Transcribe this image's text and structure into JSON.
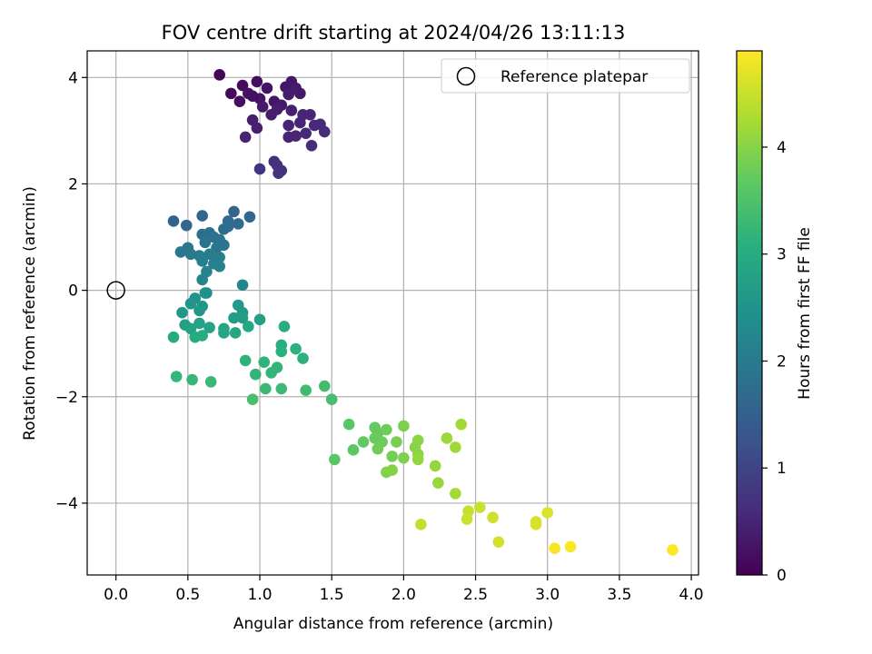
{
  "chart_data": {
    "type": "scatter",
    "title": "FOV centre drift starting at 2024/04/26 13:11:13",
    "xlabel": "Angular distance from reference (arcmin)",
    "ylabel": "Rotation from reference (arcmin)",
    "xlim": [
      -0.2,
      4.05
    ],
    "ylim": [
      -5.35,
      4.5
    ],
    "xticks": [
      0.0,
      0.5,
      1.0,
      1.5,
      2.0,
      2.5,
      3.0,
      3.5,
      4.0
    ],
    "xtick_labels": [
      "0.0",
      "0.5",
      "1.0",
      "1.5",
      "2.0",
      "2.5",
      "3.0",
      "3.5",
      "4.0"
    ],
    "yticks": [
      -4,
      -2,
      0,
      2,
      4
    ],
    "ytick_labels": [
      "−4",
      "−2",
      "0",
      "2",
      "4"
    ],
    "grid": true,
    "colormap": "viridis",
    "colorbar": {
      "label": "Hours from first FF file",
      "range": [
        0,
        4.9
      ],
      "ticks": [
        0,
        1,
        2,
        3,
        4
      ],
      "tick_labels": [
        "0",
        "1",
        "2",
        "3",
        "4"
      ]
    },
    "legend": {
      "placement": "top-right",
      "entries": [
        "Reference platepar"
      ]
    },
    "reference_point": {
      "label": "Reference platepar",
      "x": 0.0,
      "y": 0.0
    },
    "points": [
      {
        "x": 0.72,
        "y": 4.05,
        "c": 0.05
      },
      {
        "x": 0.88,
        "y": 3.85,
        "c": 0.15
      },
      {
        "x": 0.98,
        "y": 3.92,
        "c": 0.2
      },
      {
        "x": 1.05,
        "y": 3.8,
        "c": 0.25
      },
      {
        "x": 1.22,
        "y": 3.92,
        "c": 0.3
      },
      {
        "x": 1.18,
        "y": 3.82,
        "c": 0.28
      },
      {
        "x": 1.28,
        "y": 3.7,
        "c": 0.32
      },
      {
        "x": 0.8,
        "y": 3.7,
        "c": 0.12
      },
      {
        "x": 0.86,
        "y": 3.55,
        "c": 0.18
      },
      {
        "x": 0.92,
        "y": 3.7,
        "c": 0.22
      },
      {
        "x": 1.0,
        "y": 3.6,
        "c": 0.26
      },
      {
        "x": 1.1,
        "y": 3.55,
        "c": 0.3
      },
      {
        "x": 1.15,
        "y": 3.48,
        "c": 0.33
      },
      {
        "x": 1.02,
        "y": 3.45,
        "c": 0.35
      },
      {
        "x": 0.95,
        "y": 3.65,
        "c": 0.2
      },
      {
        "x": 1.2,
        "y": 3.68,
        "c": 0.38
      },
      {
        "x": 1.25,
        "y": 3.8,
        "c": 0.36
      },
      {
        "x": 1.08,
        "y": 3.3,
        "c": 0.4
      },
      {
        "x": 1.12,
        "y": 3.4,
        "c": 0.42
      },
      {
        "x": 1.22,
        "y": 3.38,
        "c": 0.45
      },
      {
        "x": 1.3,
        "y": 3.3,
        "c": 0.5
      },
      {
        "x": 1.35,
        "y": 3.3,
        "c": 0.52
      },
      {
        "x": 1.38,
        "y": 3.1,
        "c": 0.55
      },
      {
        "x": 1.42,
        "y": 3.12,
        "c": 0.58
      },
      {
        "x": 1.45,
        "y": 2.98,
        "c": 0.6
      },
      {
        "x": 1.2,
        "y": 3.1,
        "c": 0.48
      },
      {
        "x": 1.28,
        "y": 3.15,
        "c": 0.5
      },
      {
        "x": 1.32,
        "y": 2.95,
        "c": 0.55
      },
      {
        "x": 1.25,
        "y": 2.9,
        "c": 0.52
      },
      {
        "x": 1.2,
        "y": 2.88,
        "c": 0.5
      },
      {
        "x": 0.95,
        "y": 3.2,
        "c": 0.4
      },
      {
        "x": 0.98,
        "y": 3.05,
        "c": 0.45
      },
      {
        "x": 0.9,
        "y": 2.88,
        "c": 0.5
      },
      {
        "x": 1.36,
        "y": 2.72,
        "c": 0.6
      },
      {
        "x": 1.1,
        "y": 2.42,
        "c": 0.65
      },
      {
        "x": 1.12,
        "y": 2.35,
        "c": 0.68
      },
      {
        "x": 1.15,
        "y": 2.25,
        "c": 0.7
      },
      {
        "x": 1.13,
        "y": 2.2,
        "c": 0.72
      },
      {
        "x": 1.0,
        "y": 2.28,
        "c": 0.75
      },
      {
        "x": 0.4,
        "y": 1.3,
        "c": 1.55
      },
      {
        "x": 0.49,
        "y": 1.22,
        "c": 1.6
      },
      {
        "x": 0.6,
        "y": 1.4,
        "c": 1.62
      },
      {
        "x": 0.82,
        "y": 1.48,
        "c": 1.6
      },
      {
        "x": 0.93,
        "y": 1.38,
        "c": 1.65
      },
      {
        "x": 0.78,
        "y": 1.3,
        "c": 1.68
      },
      {
        "x": 0.85,
        "y": 1.25,
        "c": 1.7
      },
      {
        "x": 0.78,
        "y": 1.2,
        "c": 1.72
      },
      {
        "x": 0.75,
        "y": 1.15,
        "c": 1.75
      },
      {
        "x": 0.65,
        "y": 1.08,
        "c": 1.78
      },
      {
        "x": 0.6,
        "y": 1.05,
        "c": 1.8
      },
      {
        "x": 0.68,
        "y": 1.0,
        "c": 1.82
      },
      {
        "x": 0.72,
        "y": 0.95,
        "c": 1.85
      },
      {
        "x": 0.62,
        "y": 0.9,
        "c": 1.88
      },
      {
        "x": 0.75,
        "y": 0.85,
        "c": 1.9
      },
      {
        "x": 0.7,
        "y": 0.8,
        "c": 1.92
      },
      {
        "x": 0.5,
        "y": 0.8,
        "c": 1.95
      },
      {
        "x": 0.45,
        "y": 0.72,
        "c": 1.98
      },
      {
        "x": 0.52,
        "y": 0.68,
        "c": 2.0
      },
      {
        "x": 0.58,
        "y": 0.65,
        "c": 2.02
      },
      {
        "x": 0.65,
        "y": 0.68,
        "c": 2.05
      },
      {
        "x": 0.72,
        "y": 0.62,
        "c": 2.08
      },
      {
        "x": 0.6,
        "y": 0.55,
        "c": 2.1
      },
      {
        "x": 0.68,
        "y": 0.5,
        "c": 2.12
      },
      {
        "x": 0.72,
        "y": 0.45,
        "c": 2.15
      },
      {
        "x": 0.63,
        "y": 0.35,
        "c": 2.18
      },
      {
        "x": 0.6,
        "y": 0.2,
        "c": 2.2
      },
      {
        "x": 0.88,
        "y": 0.1,
        "c": 2.22
      },
      {
        "x": 0.63,
        "y": -0.05,
        "c": 2.3
      },
      {
        "x": 0.62,
        "y": -0.05,
        "c": 2.45
      },
      {
        "x": 0.55,
        "y": -0.15,
        "c": 2.5
      },
      {
        "x": 0.52,
        "y": -0.25,
        "c": 2.52
      },
      {
        "x": 0.6,
        "y": -0.3,
        "c": 2.55
      },
      {
        "x": 0.58,
        "y": -0.38,
        "c": 2.58
      },
      {
        "x": 0.46,
        "y": -0.42,
        "c": 2.6
      },
      {
        "x": 0.85,
        "y": -0.28,
        "c": 2.62
      },
      {
        "x": 0.88,
        "y": -0.42,
        "c": 2.65
      },
      {
        "x": 0.82,
        "y": -0.52,
        "c": 2.68
      },
      {
        "x": 0.88,
        "y": -0.52,
        "c": 2.7
      },
      {
        "x": 1.0,
        "y": -0.55,
        "c": 2.72
      },
      {
        "x": 0.48,
        "y": -0.65,
        "c": 2.75
      },
      {
        "x": 0.52,
        "y": -0.72,
        "c": 2.78
      },
      {
        "x": 0.58,
        "y": -0.62,
        "c": 2.8
      },
      {
        "x": 0.65,
        "y": -0.7,
        "c": 2.82
      },
      {
        "x": 0.75,
        "y": -0.72,
        "c": 2.85
      },
      {
        "x": 0.75,
        "y": -0.8,
        "c": 2.88
      },
      {
        "x": 0.83,
        "y": -0.8,
        "c": 2.9
      },
      {
        "x": 0.92,
        "y": -0.68,
        "c": 2.92
      },
      {
        "x": 0.4,
        "y": -0.88,
        "c": 2.95
      },
      {
        "x": 0.55,
        "y": -0.88,
        "c": 2.98
      },
      {
        "x": 0.6,
        "y": -0.85,
        "c": 3.0
      },
      {
        "x": 1.17,
        "y": -0.68,
        "c": 3.02
      },
      {
        "x": 1.15,
        "y": -1.03,
        "c": 3.05
      },
      {
        "x": 1.15,
        "y": -1.15,
        "c": 3.08
      },
      {
        "x": 1.25,
        "y": -1.1,
        "c": 3.1
      },
      {
        "x": 1.3,
        "y": -1.28,
        "c": 3.12
      },
      {
        "x": 0.9,
        "y": -1.32,
        "c": 3.15
      },
      {
        "x": 1.03,
        "y": -1.35,
        "c": 3.15
      },
      {
        "x": 1.12,
        "y": -1.45,
        "c": 3.18
      },
      {
        "x": 1.08,
        "y": -1.55,
        "c": 3.2
      },
      {
        "x": 0.97,
        "y": -1.58,
        "c": 3.2
      },
      {
        "x": 0.42,
        "y": -1.62,
        "c": 3.22
      },
      {
        "x": 0.53,
        "y": -1.68,
        "c": 3.25
      },
      {
        "x": 0.66,
        "y": -1.72,
        "c": 3.28
      },
      {
        "x": 1.04,
        "y": -1.85,
        "c": 3.3
      },
      {
        "x": 1.15,
        "y": -1.85,
        "c": 3.32
      },
      {
        "x": 1.32,
        "y": -1.88,
        "c": 3.35
      },
      {
        "x": 1.45,
        "y": -1.8,
        "c": 3.38
      },
      {
        "x": 1.5,
        "y": -2.05,
        "c": 3.4
      },
      {
        "x": 0.95,
        "y": -2.05,
        "c": 3.42
      },
      {
        "x": 1.62,
        "y": -2.52,
        "c": 3.6
      },
      {
        "x": 1.52,
        "y": -3.18,
        "c": 3.62
      },
      {
        "x": 1.65,
        "y": -3.0,
        "c": 3.65
      },
      {
        "x": 1.72,
        "y": -2.85,
        "c": 3.68
      },
      {
        "x": 1.8,
        "y": -2.58,
        "c": 3.7
      },
      {
        "x": 1.82,
        "y": -2.68,
        "c": 3.72
      },
      {
        "x": 1.8,
        "y": -2.78,
        "c": 3.75
      },
      {
        "x": 1.85,
        "y": -2.85,
        "c": 3.78
      },
      {
        "x": 1.88,
        "y": -2.62,
        "c": 3.8
      },
      {
        "x": 1.82,
        "y": -2.98,
        "c": 3.82
      },
      {
        "x": 1.92,
        "y": -3.12,
        "c": 3.85
      },
      {
        "x": 1.95,
        "y": -2.85,
        "c": 3.88
      },
      {
        "x": 2.0,
        "y": -2.55,
        "c": 3.9
      },
      {
        "x": 2.0,
        "y": -3.15,
        "c": 3.92
      },
      {
        "x": 1.88,
        "y": -3.42,
        "c": 3.95
      },
      {
        "x": 1.92,
        "y": -3.38,
        "c": 3.98
      },
      {
        "x": 2.08,
        "y": -2.95,
        "c": 4.0
      },
      {
        "x": 2.1,
        "y": -2.82,
        "c": 4.02
      },
      {
        "x": 2.1,
        "y": -3.08,
        "c": 4.05
      },
      {
        "x": 2.1,
        "y": -3.18,
        "c": 4.08
      },
      {
        "x": 2.22,
        "y": -3.3,
        "c": 4.1
      },
      {
        "x": 2.24,
        "y": -3.62,
        "c": 4.12
      },
      {
        "x": 2.3,
        "y": -2.78,
        "c": 4.15
      },
      {
        "x": 2.36,
        "y": -2.95,
        "c": 4.18
      },
      {
        "x": 2.4,
        "y": -2.52,
        "c": 4.2
      },
      {
        "x": 2.36,
        "y": -3.82,
        "c": 4.22
      },
      {
        "x": 2.12,
        "y": -4.4,
        "c": 4.45
      },
      {
        "x": 2.45,
        "y": -4.15,
        "c": 4.48
      },
      {
        "x": 2.44,
        "y": -4.3,
        "c": 4.5
      },
      {
        "x": 2.53,
        "y": -4.08,
        "c": 4.52
      },
      {
        "x": 2.62,
        "y": -4.27,
        "c": 4.55
      },
      {
        "x": 2.66,
        "y": -4.73,
        "c": 4.58
      },
      {
        "x": 2.92,
        "y": -4.35,
        "c": 4.6
      },
      {
        "x": 2.92,
        "y": -4.4,
        "c": 4.62
      },
      {
        "x": 3.0,
        "y": -4.18,
        "c": 4.65
      },
      {
        "x": 3.05,
        "y": -4.85,
        "c": 4.85
      },
      {
        "x": 3.16,
        "y": -4.82,
        "c": 4.88
      },
      {
        "x": 3.87,
        "y": -4.88,
        "c": 4.9
      }
    ]
  }
}
